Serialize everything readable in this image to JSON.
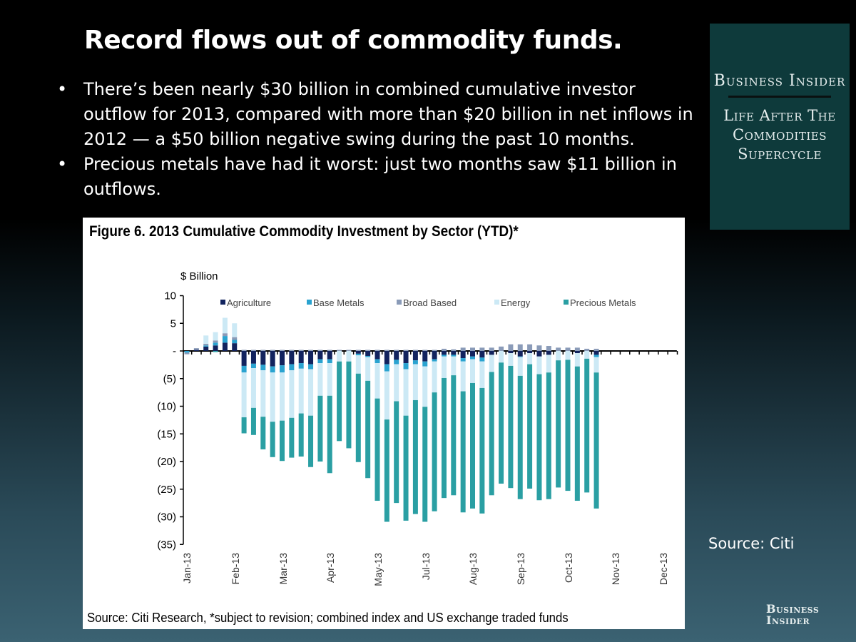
{
  "slide": {
    "title": "Record flows out of commodity funds.",
    "bullets": [
      "There’s been nearly $30 billion in combined cumulative investor outflow for 2013, compared with more than $20 billion in net inflows in 2012 — a $50 billion negative swing during the past 10 months.",
      "Precious metals have had it worst: just two months saw $11 billion in outflows."
    ],
    "bullet_glyph": "•",
    "panel": {
      "brand": "Business Insider",
      "series": "Life After The Commodities Supercycle"
    },
    "source": "Source: Citi",
    "logo": "Business Insider"
  },
  "chart_data": {
    "type": "bar",
    "stacked": true,
    "title": "Figure 6. 2013 Cumulative Commodity Investment by Sector (YTD)*",
    "ylabel": "$ Billion",
    "xlabel": "",
    "footnote": "Source: Citi Research, *subject to revision; combined index and US exchange traded funds",
    "ylim": [
      -35,
      10
    ],
    "yticks": [
      10,
      5,
      0,
      -5,
      -10,
      -15,
      -20,
      -25,
      -30,
      -35
    ],
    "ytick_labels": [
      "10",
      "5",
      "-",
      "(5)",
      "(10)",
      "(15)",
      "(20)",
      "(25)",
      "(30)",
      "(35)"
    ],
    "xtick_labels": [
      "Jan-13",
      "Feb-13",
      "Mar-13",
      "Apr-13",
      "May-13",
      "Jul-13",
      "Aug-13",
      "Sep-13",
      "Oct-13",
      "Nov-13",
      "Dec-13"
    ],
    "x_frequency": "weekly",
    "legend_position": "top",
    "grid": false,
    "series": [
      {
        "name": "Agriculture",
        "color": "#12235e",
        "values": [
          0,
          0.2,
          0.8,
          1,
          1.5,
          1.4,
          -2.7,
          -2.3,
          -2.5,
          -2.8,
          -2.6,
          -2.4,
          -2.2,
          -2.4,
          -1.5,
          -1.5,
          0,
          0,
          -0.5,
          -0.9,
          -1.5,
          -2.4,
          -1.6,
          -2.2,
          -1.7,
          -1.9,
          -1.5,
          -0.7,
          -0.7,
          -1.3,
          -1,
          -1.2,
          -0.7,
          0,
          -0.4,
          -1,
          -0.4,
          -1,
          -0.7,
          0,
          0,
          -0.4,
          0,
          -0.7
        ]
      },
      {
        "name": "Base Metals",
        "color": "#2aa3d0",
        "values": [
          -0.3,
          0,
          0.2,
          0.5,
          1.2,
          0.6,
          -1.2,
          -0.8,
          -1,
          -1.1,
          -1.3,
          -1.1,
          -1,
          -0.9,
          -0.7,
          -0.7,
          0,
          0,
          -0.3,
          -0.2,
          -0.7,
          -1.3,
          -0.8,
          -1.1,
          -0.7,
          -0.9,
          -0.4,
          -0.3,
          -0.3,
          -0.6,
          -0.5,
          -0.7,
          0,
          0,
          0,
          -0.1,
          0,
          0,
          0,
          0,
          0,
          0,
          0,
          -0.4
        ]
      },
      {
        "name": "Broad Based",
        "color": "#8a9bb8",
        "values": [
          -0.3,
          0.3,
          0.3,
          0.4,
          0.5,
          0.5,
          0.2,
          0.2,
          0.2,
          0.2,
          0.2,
          0.2,
          0.2,
          0.2,
          0.2,
          0.2,
          0.2,
          0.2,
          0.2,
          0.2,
          0.2,
          0.2,
          0.2,
          0.2,
          0.2,
          0.2,
          0.2,
          0.4,
          0.3,
          0.6,
          0.6,
          0.6,
          0.6,
          0.8,
          1.2,
          1.2,
          1.2,
          1,
          0.9,
          0.6,
          0.6,
          0.6,
          0.4,
          0.4
        ]
      },
      {
        "name": "Energy",
        "color": "#cce9f5",
        "values": [
          0,
          0,
          1.5,
          1.5,
          2.8,
          2.5,
          -8.1,
          -7.2,
          -8.4,
          -8.9,
          -8.7,
          -8.6,
          -8.1,
          -8.4,
          -5.9,
          -5.9,
          -1.9,
          -1.9,
          -3.3,
          -4.3,
          -6.4,
          -8.7,
          -6.7,
          -8.4,
          -6.5,
          -7.3,
          -5.6,
          -3.9,
          -3.4,
          -5.4,
          -4.3,
          -4.8,
          -3.1,
          -2.1,
          -2.3,
          -3.4,
          -2,
          -3.2,
          -3.2,
          -1.7,
          -1.6,
          -2.4,
          -1.4,
          -2.8
        ]
      },
      {
        "name": "Precious Metals",
        "color": "#2a9fa3",
        "values": [
          0,
          0,
          0,
          -0.2,
          0,
          0,
          -2.9,
          -4.9,
          -5.9,
          -6.4,
          -7.3,
          -7.2,
          -7.8,
          -9.3,
          -11.9,
          -14,
          -14.4,
          -15.7,
          -16,
          -17.6,
          -18.5,
          -18.5,
          -18.4,
          -19,
          -20.6,
          -20.8,
          -21.5,
          -21.7,
          -21.7,
          -21.9,
          -22.7,
          -22.7,
          -22.3,
          -21.9,
          -22.1,
          -22.3,
          -22.5,
          -22.8,
          -22.9,
          -23,
          -23.7,
          -24.3,
          -24.2,
          -24.6
        ]
      }
    ]
  }
}
